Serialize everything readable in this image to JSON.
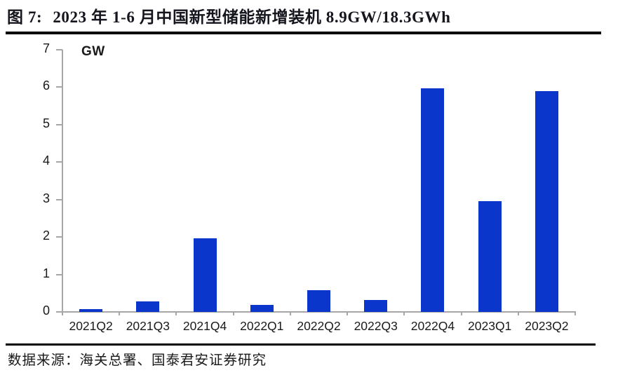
{
  "figure": {
    "title_prefix": "图 7:",
    "title_text": "2023 年 1-6 月中国新型储能新增装机 8.9GW/18.3GWh",
    "source": "数据来源：海关总署、国泰君安证券研究"
  },
  "chart_data": {
    "type": "bar",
    "title": "2023 年 1-6 月中国新型储能新增装机 8.9GW/18.3GWh",
    "unit_label": "GW",
    "categories": [
      "2021Q2",
      "2021Q3",
      "2021Q4",
      "2022Q1",
      "2022Q2",
      "2022Q3",
      "2022Q4",
      "2023Q1",
      "2023Q2"
    ],
    "values": [
      0.08,
      0.29,
      1.96,
      0.18,
      0.58,
      0.32,
      5.97,
      2.95,
      5.9
    ],
    "xlabel": "",
    "ylabel": "GW",
    "ylim": [
      0,
      7
    ],
    "ytick_step": 1,
    "grid": false,
    "legend": "none",
    "bar_color": "#0b36cc",
    "axis_color": "#a6a6a6",
    "text_color": "#1a1a1a"
  }
}
